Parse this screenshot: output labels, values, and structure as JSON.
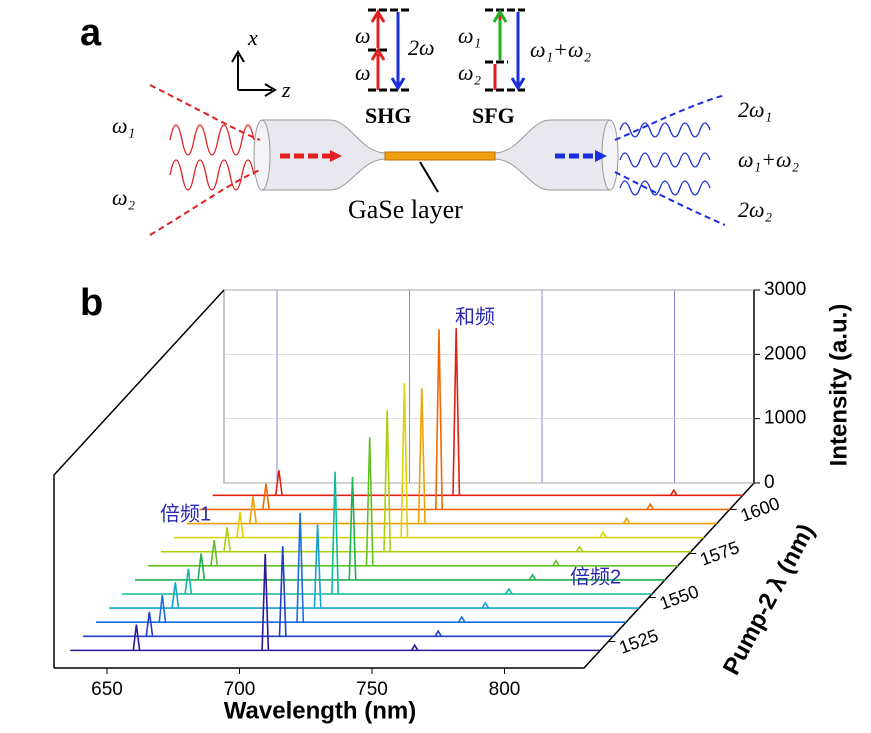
{
  "panel_a": {
    "label": "a",
    "axis_x": "x",
    "axis_z": "z",
    "shg_levels": [
      "ω",
      "ω",
      "2ω"
    ],
    "shg": "SHG",
    "sfg_levels": [
      "ω₁",
      "ω₂",
      "ω₁+ω₂"
    ],
    "sfg": "SFG",
    "input": [
      "ω₁",
      "ω₂"
    ],
    "output": [
      "2ω₁",
      "ω₁+ω₂",
      "2ω₂"
    ],
    "layer": "GaSe layer"
  },
  "chart_data": {
    "type": "waterfall",
    "panel_label": "b",
    "xlabel": "Wavelength (nm)",
    "ylabel": "Pump-2 λ (nm)",
    "zlabel": "Intensity (a.u.)",
    "xlim": [
      630,
      830
    ],
    "xticks": [
      650,
      700,
      750,
      800
    ],
    "ylim": [
      1510,
      1615
    ],
    "yticks": [
      1525,
      1550,
      1575,
      1600
    ],
    "zlim": [
      0,
      3000
    ],
    "zticks": [
      0,
      1000,
      2000,
      3000
    ],
    "annotations": [
      "和频",
      "倍频1",
      "倍频2"
    ],
    "series": [
      {
        "pump2": 1520,
        "color": "#2a1a9a",
        "peak_wavelengths": [
          655,
          703.6,
          760
        ],
        "peak_intensities": [
          400,
          1500,
          80
        ]
      },
      {
        "pump2": 1528,
        "color": "#1f3fc8",
        "peak_wavelengths": [
          655,
          705.3,
          764
        ],
        "peak_intensities": [
          380,
          1400,
          80
        ]
      },
      {
        "pump2": 1536,
        "color": "#1a6ee0",
        "peak_wavelengths": [
          655,
          707.0,
          768
        ],
        "peak_intensities": [
          420,
          1700,
          80
        ]
      },
      {
        "pump2": 1544,
        "color": "#14a0d0",
        "peak_wavelengths": [
          655,
          708.7,
          772
        ],
        "peak_intensities": [
          400,
          1300,
          80
        ]
      },
      {
        "pump2": 1552,
        "color": "#10b8a0",
        "peak_wavelengths": [
          655,
          710.4,
          776
        ],
        "peak_intensities": [
          390,
          1900,
          80
        ]
      },
      {
        "pump2": 1560,
        "color": "#20b050",
        "peak_wavelengths": [
          655,
          712.1,
          780
        ],
        "peak_intensities": [
          410,
          1600,
          80
        ]
      },
      {
        "pump2": 1568,
        "color": "#60c020",
        "peak_wavelengths": [
          655,
          713.7,
          784
        ],
        "peak_intensities": [
          400,
          2000,
          80
        ]
      },
      {
        "pump2": 1576,
        "color": "#a8d010",
        "peak_wavelengths": [
          655,
          715.4,
          788
        ],
        "peak_intensities": [
          380,
          2200,
          80
        ]
      },
      {
        "pump2": 1584,
        "color": "#e0d000",
        "peak_wavelengths": [
          655,
          717.0,
          792
        ],
        "peak_intensities": [
          400,
          2400,
          80
        ]
      },
      {
        "pump2": 1592,
        "color": "#f0a000",
        "peak_wavelengths": [
          655,
          718.7,
          796
        ],
        "peak_intensities": [
          420,
          2100,
          80
        ]
      },
      {
        "pump2": 1600,
        "color": "#f06800",
        "peak_wavelengths": [
          655,
          720.3,
          800
        ],
        "peak_intensities": [
          400,
          2800,
          80
        ]
      },
      {
        "pump2": 1608,
        "color": "#e02010",
        "peak_wavelengths": [
          655,
          721.9,
          804
        ],
        "peak_intensities": [
          390,
          2600,
          80
        ]
      }
    ]
  }
}
